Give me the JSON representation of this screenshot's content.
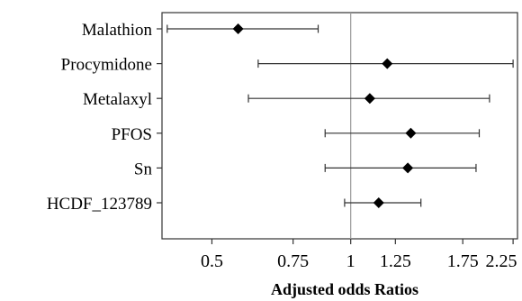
{
  "chart_data": {
    "type": "forest",
    "title": "",
    "xlabel": "Adjusted odds Ratios",
    "ylabel": "",
    "x_scale": "log",
    "xlim": [
      0.3897,
      2.3
    ],
    "reference_line": 1,
    "grid": false,
    "legend": "none",
    "categories": [
      "Malathion",
      "Procymidone",
      "Metalaxyl",
      "PFOS",
      "Sn",
      "HCDF_123789"
    ],
    "series": [
      {
        "values": [
          {
            "label": "Malathion",
            "estimate": 0.57,
            "lower": 0.4,
            "upper": 0.85
          },
          {
            "label": "Procymidone",
            "estimate": 1.2,
            "lower": 0.63,
            "upper": 2.25
          },
          {
            "label": "Metalaxyl",
            "estimate": 1.1,
            "lower": 0.6,
            "upper": 2.0
          },
          {
            "label": "PFOS",
            "estimate": 1.35,
            "lower": 0.88,
            "upper": 1.9
          },
          {
            "label": "Sn",
            "estimate": 1.33,
            "lower": 0.88,
            "upper": 1.87
          },
          {
            "label": "HCDF_123789",
            "estimate": 1.15,
            "lower": 0.97,
            "upper": 1.42
          }
        ]
      }
    ],
    "x_ticks": [
      {
        "value": 0.5,
        "label": "0.5"
      },
      {
        "value": 0.75,
        "label": "0.75"
      },
      {
        "value": 1,
        "label": "1"
      },
      {
        "value": 1.25,
        "label": "1.25"
      },
      {
        "value": 1.75,
        "label": "1.75"
      },
      {
        "value": 2.25,
        "label": "2.25"
      }
    ],
    "colors": {
      "marker": "#000000",
      "whisker": "#333333",
      "reference": "#999999",
      "frame": "#333333"
    }
  }
}
